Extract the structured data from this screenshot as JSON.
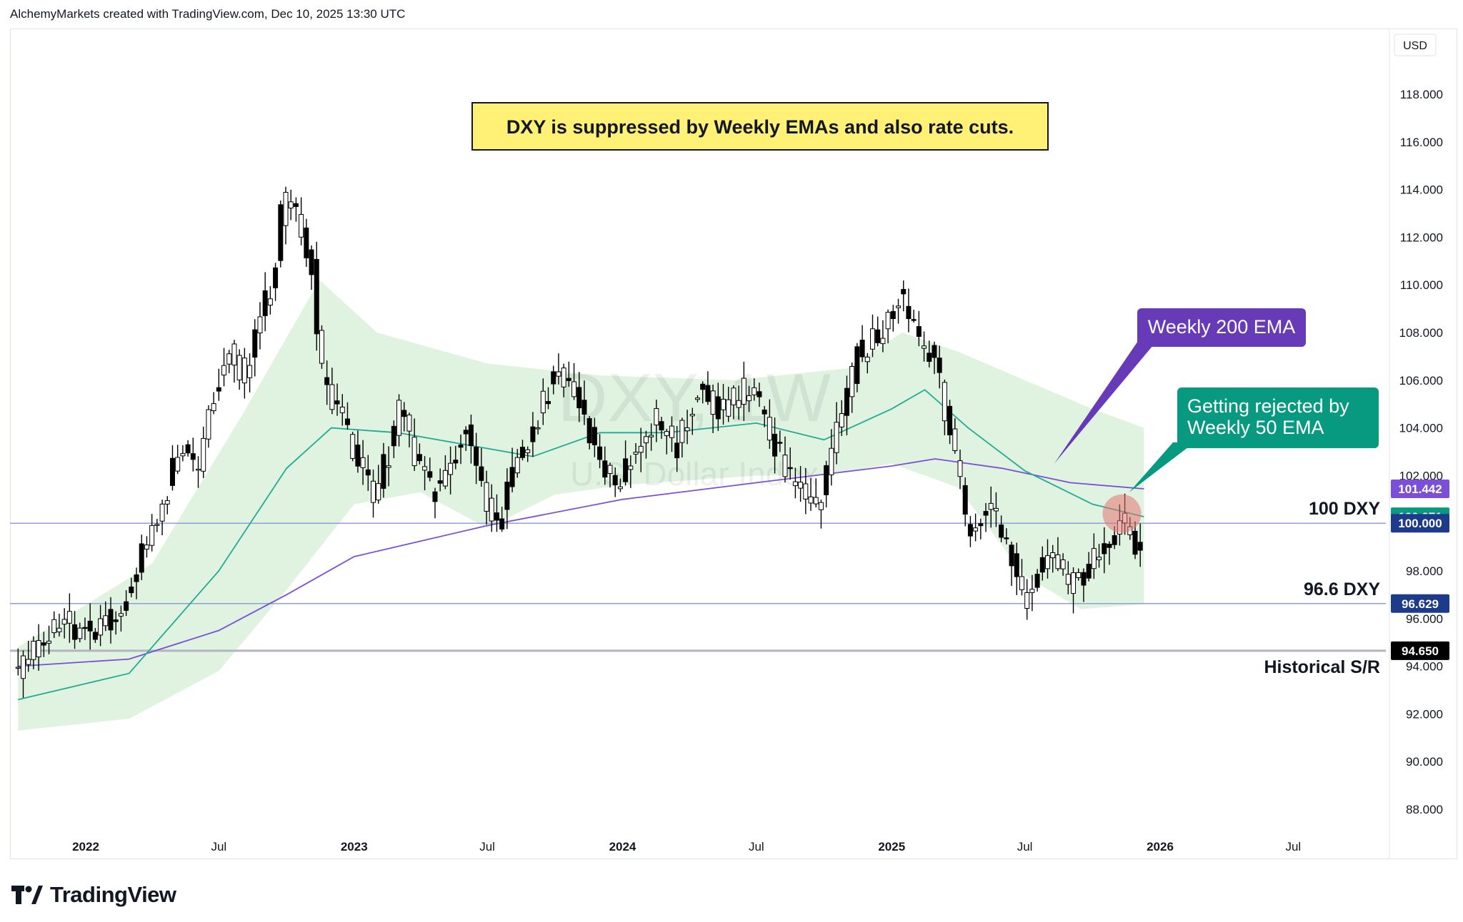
{
  "header": {
    "attribution": "AlchemyMarkets created with TradingView.com, Dec 10, 2025 13:30 UTC"
  },
  "currency_label": "USD",
  "footer": {
    "brand": "TradingView"
  },
  "colors": {
    "ema50": "#22ab94",
    "ema200": "#7b4fd6",
    "band_fill": "#dff3e0",
    "bull_candle": "#ffffff",
    "bear_candle": "#000000",
    "hline": "#8fa0d8",
    "historical_line": "#b2b5be",
    "title_box_fill": "#fff176",
    "callout_purple": "#673ab7",
    "callout_teal": "#089981",
    "rejection_circle": "#e57373"
  },
  "chart_data": {
    "type": "candlestick",
    "symbol": "DXY",
    "interval": "1W",
    "watermark_symbol": "DXY, 1W",
    "watermark_name": "U.S. Dollar Index",
    "title": "DXY is suppressed by Weekly EMAs and also rate cuts.",
    "x_axis": {
      "labels": [
        "2022",
        "Jul",
        "2023",
        "Jul",
        "2024",
        "Jul",
        "2025",
        "Jul",
        "2026",
        "Jul"
      ],
      "dates": [
        "2022-01-01",
        "2022-07-01",
        "2023-01-01",
        "2023-07-01",
        "2024-01-01",
        "2024-07-01",
        "2025-01-01",
        "2025-07-01",
        "2026-01-01",
        "2026-07-01"
      ]
    },
    "y_axis": {
      "range": [
        86.5,
        120.0
      ],
      "ticks": [
        "88.000",
        "90.000",
        "92.000",
        "94.000",
        "96.000",
        "98.000",
        "100.000",
        "102.000",
        "104.000",
        "106.000",
        "108.000",
        "110.000",
        "112.000",
        "114.000",
        "116.000",
        "118.000"
      ]
    },
    "horizontal_lines": [
      {
        "value": 100.0,
        "label": "100 DXY",
        "kind": "level"
      },
      {
        "value": 96.629,
        "label": "96.6 DXY",
        "kind": "level"
      },
      {
        "value": 94.65,
        "label": "Historical S/R",
        "kind": "historical"
      }
    ],
    "price_badges": [
      {
        "text": "101.442",
        "value": 101.442,
        "color": "#7b4fd6"
      },
      {
        "text": "100.271",
        "value": 100.271,
        "color": "#089981"
      },
      {
        "text": "100.000",
        "value": 100.0,
        "color": "#1e3a8a"
      },
      {
        "text": "96.629",
        "value": 96.629,
        "color": "#1e3a8a"
      },
      {
        "text": "94.650",
        "value": 94.65,
        "color": "#000000"
      }
    ],
    "annotations": [
      {
        "text": "Weekly 200 EMA",
        "target_date": "2025-08-10",
        "target_value": 102.5
      },
      {
        "text": "Getting rejected by Weekly 50 EMA",
        "lines": [
          "Getting rejected by",
          "Weekly 50 EMA"
        ],
        "target_date": "2025-11-20",
        "target_value": 101.3
      }
    ],
    "rejection_marker": {
      "date": "2025-11-10",
      "value": 100.4
    },
    "price_path": [
      [
        "2021-10-01",
        93.7
      ],
      [
        "2021-12-01",
        96.0
      ],
      [
        "2022-01-15",
        95.3
      ],
      [
        "2022-02-15",
        96.3
      ],
      [
        "2022-03-15",
        98.5
      ],
      [
        "2022-04-15",
        100.8
      ],
      [
        "2022-05-15",
        103.5
      ],
      [
        "2022-06-01",
        102.0
      ],
      [
        "2022-06-15",
        104.7
      ],
      [
        "2022-07-15",
        107.5
      ],
      [
        "2022-08-01",
        105.8
      ],
      [
        "2022-08-20",
        108.2
      ],
      [
        "2022-09-10",
        109.8
      ],
      [
        "2022-09-28",
        113.8
      ],
      [
        "2022-10-20",
        112.3
      ],
      [
        "2022-11-05",
        110.8
      ],
      [
        "2022-11-15",
        106.5
      ],
      [
        "2022-12-05",
        104.8
      ],
      [
        "2022-12-20",
        104.0
      ],
      [
        "2023-01-15",
        102.2
      ],
      [
        "2023-02-01",
        101.2
      ],
      [
        "2023-03-05",
        105.0
      ],
      [
        "2023-03-20",
        103.0
      ],
      [
        "2023-04-15",
        101.5
      ],
      [
        "2023-05-01",
        101.5
      ],
      [
        "2023-05-30",
        104.2
      ],
      [
        "2023-06-15",
        102.5
      ],
      [
        "2023-07-14",
        99.9
      ],
      [
        "2023-08-01",
        102.0
      ],
      [
        "2023-09-01",
        104.0
      ],
      [
        "2023-10-01",
        106.5
      ],
      [
        "2023-11-01",
        105.5
      ],
      [
        "2023-11-20",
        103.5
      ],
      [
        "2023-12-25",
        101.3
      ],
      [
        "2024-01-15",
        103.0
      ],
      [
        "2024-02-15",
        104.2
      ],
      [
        "2024-03-15",
        103.4
      ],
      [
        "2024-04-15",
        106.0
      ],
      [
        "2024-05-15",
        104.5
      ],
      [
        "2024-06-25",
        105.8
      ],
      [
        "2024-07-15",
        104.0
      ],
      [
        "2024-08-15",
        102.0
      ],
      [
        "2024-09-20",
        100.6
      ],
      [
        "2024-10-15",
        103.5
      ],
      [
        "2024-11-15",
        106.8
      ],
      [
        "2024-12-20",
        108.0
      ],
      [
        "2025-01-10",
        109.6
      ],
      [
        "2025-02-01",
        107.8
      ],
      [
        "2025-03-01",
        106.8
      ],
      [
        "2025-03-20",
        104.0
      ],
      [
        "2025-04-15",
        99.5
      ],
      [
        "2025-05-10",
        100.8
      ],
      [
        "2025-06-15",
        98.5
      ],
      [
        "2025-07-01",
        96.8
      ],
      [
        "2025-07-25",
        98.5
      ],
      [
        "2025-08-20",
        98.0
      ],
      [
        "2025-09-15",
        97.2
      ],
      [
        "2025-10-10",
        98.8
      ],
      [
        "2025-11-05",
        99.8
      ],
      [
        "2025-11-20",
        99.7
      ],
      [
        "2025-12-10",
        98.9
      ]
    ],
    "ema50_path": [
      [
        "2021-10-01",
        92.6
      ],
      [
        "2022-03-01",
        93.7
      ],
      [
        "2022-07-01",
        98.0
      ],
      [
        "2022-10-01",
        102.3
      ],
      [
        "2022-12-01",
        104.0
      ],
      [
        "2023-03-01",
        103.8
      ],
      [
        "2023-06-01",
        103.3
      ],
      [
        "2023-09-01",
        102.8
      ],
      [
        "2023-12-01",
        103.8
      ],
      [
        "2024-03-01",
        103.8
      ],
      [
        "2024-07-01",
        104.2
      ],
      [
        "2024-10-01",
        103.5
      ],
      [
        "2025-01-01",
        104.8
      ],
      [
        "2025-02-15",
        105.6
      ],
      [
        "2025-04-15",
        104.0
      ],
      [
        "2025-07-01",
        102.2
      ],
      [
        "2025-10-01",
        100.8
      ],
      [
        "2025-12-10",
        100.271
      ]
    ],
    "ema200_path": [
      [
        "2021-10-01",
        94.0
      ],
      [
        "2022-03-01",
        94.3
      ],
      [
        "2022-07-01",
        95.5
      ],
      [
        "2022-10-01",
        97.0
      ],
      [
        "2023-01-01",
        98.6
      ],
      [
        "2023-07-01",
        99.9
      ],
      [
        "2024-01-01",
        101.0
      ],
      [
        "2024-07-01",
        101.7
      ],
      [
        "2025-01-01",
        102.4
      ],
      [
        "2025-03-01",
        102.7
      ],
      [
        "2025-06-01",
        102.3
      ],
      [
        "2025-09-01",
        101.7
      ],
      [
        "2025-12-10",
        101.442
      ]
    ],
    "band_upper": [
      [
        "2021-10-01",
        94.8
      ],
      [
        "2022-04-01",
        98.3
      ],
      [
        "2022-08-01",
        104.5
      ],
      [
        "2022-11-15",
        110.2
      ],
      [
        "2023-02-01",
        108.0
      ],
      [
        "2023-07-01",
        106.7
      ],
      [
        "2023-12-01",
        106.2
      ],
      [
        "2024-06-01",
        106.0
      ],
      [
        "2024-11-01",
        106.5
      ],
      [
        "2025-01-15",
        108.0
      ],
      [
        "2025-04-01",
        107.2
      ],
      [
        "2025-07-01",
        106.0
      ],
      [
        "2025-10-01",
        104.8
      ],
      [
        "2025-12-10",
        104.0
      ]
    ],
    "band_lower": [
      [
        "2021-10-01",
        91.3
      ],
      [
        "2022-03-01",
        91.8
      ],
      [
        "2022-07-01",
        93.8
      ],
      [
        "2022-10-01",
        97.2
      ],
      [
        "2023-01-01",
        100.8
      ],
      [
        "2023-04-01",
        101.3
      ],
      [
        "2023-07-01",
        99.8
      ],
      [
        "2023-10-01",
        101.2
      ],
      [
        "2024-01-01",
        101.6
      ],
      [
        "2024-07-01",
        102.0
      ],
      [
        "2024-10-01",
        102.0
      ],
      [
        "2025-01-01",
        102.5
      ],
      [
        "2025-04-01",
        101.5
      ],
      [
        "2025-07-01",
        97.8
      ],
      [
        "2025-09-15",
        96.4
      ],
      [
        "2025-12-10",
        96.6
      ]
    ]
  }
}
